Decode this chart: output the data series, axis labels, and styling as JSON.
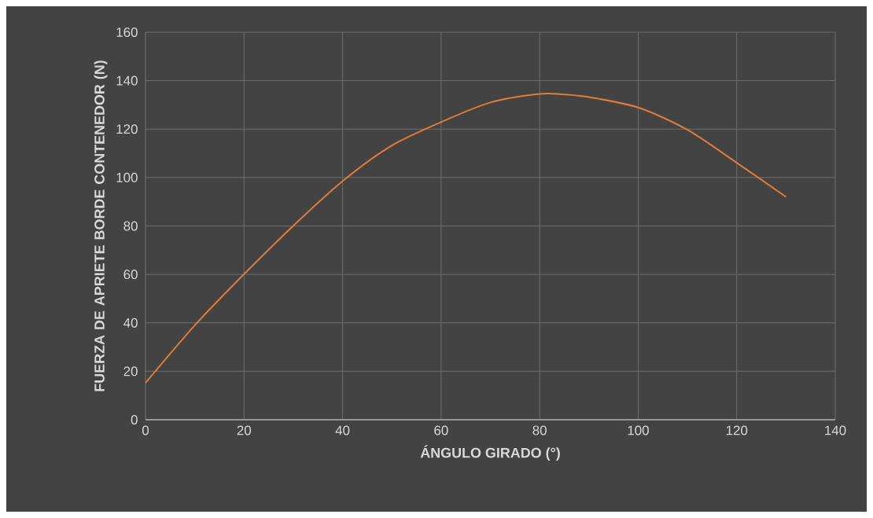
{
  "chart_data": {
    "type": "line",
    "xlabel": "ÁNGULO GIRADO (°)",
    "ylabel": "FUERZA DE APRIETE BORDE CONTENEDOR (N)",
    "x": [
      0,
      10,
      20,
      30,
      40,
      50,
      60,
      70,
      80,
      85,
      90,
      100,
      110,
      120,
      130
    ],
    "series": [
      {
        "color": "#e07b39",
        "values": [
          15.2,
          39,
          60.1,
          80.1,
          98.5,
          113.2,
          122.9,
          131,
          134.5,
          134.3,
          133.2,
          128.9,
          119.7,
          106.1,
          92.0
        ]
      }
    ],
    "xlim": [
      0,
      140
    ],
    "ylim": [
      0,
      160
    ],
    "xticks": [
      0,
      20,
      40,
      60,
      80,
      100,
      120,
      140
    ],
    "yticks": [
      0,
      20,
      40,
      60,
      80,
      100,
      120,
      140,
      160
    ],
    "grid": true,
    "marker": "none",
    "line_style": "solid"
  }
}
